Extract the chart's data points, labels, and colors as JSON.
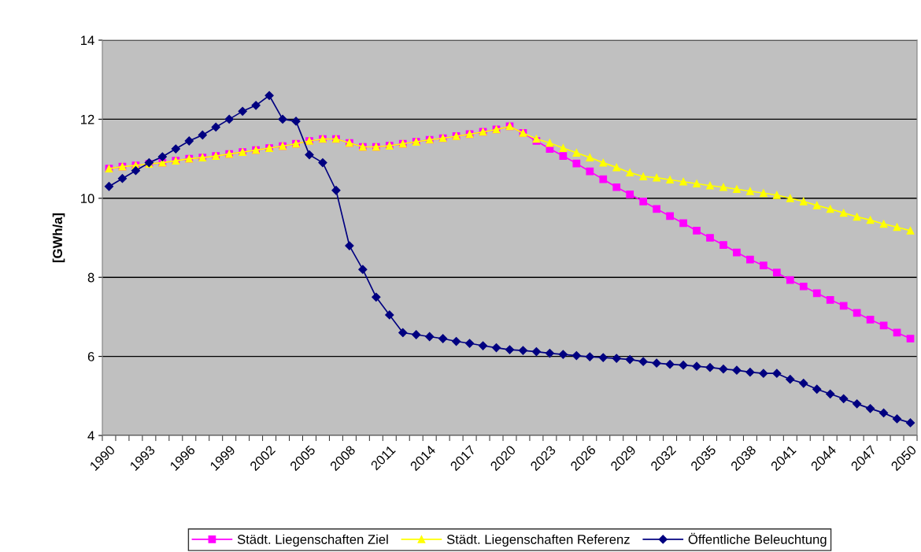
{
  "chart_data": {
    "type": "line",
    "ylabel": "[GWh/a]",
    "categories": [
      "1990",
      null,
      null,
      "1993",
      null,
      null,
      "1996",
      null,
      null,
      "1999",
      null,
      null,
      "2002",
      null,
      null,
      "2005",
      null,
      null,
      "2008",
      null,
      null,
      "2011",
      null,
      null,
      "2014",
      null,
      null,
      "2017",
      null,
      null,
      "2020",
      null,
      null,
      "2023",
      null,
      null,
      "2026",
      null,
      null,
      "2029",
      null,
      null,
      "2032",
      null,
      null,
      "2035",
      null,
      null,
      "2038",
      null,
      null,
      "2041",
      null,
      null,
      "2044",
      null,
      null,
      "2047",
      null,
      null,
      "2050"
    ],
    "ylim": [
      4,
      14
    ],
    "yticks": [
      4,
      6,
      8,
      10,
      12,
      14
    ],
    "grid": "y",
    "legend": "bottom",
    "series": [
      {
        "name": "Städt. Liegenschaften Ziel",
        "color": "#ff00ff",
        "marker": "square",
        "values": [
          10.75,
          10.8,
          10.83,
          10.87,
          10.9,
          10.95,
          11.0,
          11.03,
          11.07,
          11.12,
          11.17,
          11.22,
          11.27,
          11.32,
          11.38,
          11.45,
          11.5,
          11.5,
          11.4,
          11.3,
          11.3,
          11.33,
          11.38,
          11.43,
          11.48,
          11.52,
          11.57,
          11.62,
          11.68,
          11.74,
          11.82,
          11.65,
          11.45,
          11.25,
          11.07,
          10.88,
          10.68,
          10.48,
          10.28,
          10.1,
          9.92,
          9.73,
          9.55,
          9.37,
          9.18,
          9.0,
          8.82,
          8.63,
          8.45,
          8.3,
          8.12,
          7.93,
          7.77,
          7.6,
          7.43,
          7.28,
          7.1,
          6.93,
          6.78,
          6.6,
          6.45
        ]
      },
      {
        "name": "Städt. Liegenschaften Referenz",
        "color": "#ffff00",
        "marker": "triangle",
        "values": [
          10.75,
          10.8,
          10.83,
          10.87,
          10.9,
          10.95,
          11.0,
          11.03,
          11.07,
          11.12,
          11.17,
          11.22,
          11.27,
          11.32,
          11.38,
          11.45,
          11.5,
          11.5,
          11.4,
          11.3,
          11.3,
          11.33,
          11.38,
          11.43,
          11.48,
          11.52,
          11.57,
          11.62,
          11.68,
          11.74,
          11.82,
          11.65,
          11.5,
          11.4,
          11.27,
          11.15,
          11.03,
          10.9,
          10.78,
          10.65,
          10.55,
          10.52,
          10.47,
          10.42,
          10.37,
          10.32,
          10.28,
          10.23,
          10.18,
          10.13,
          10.08,
          10.0,
          9.92,
          9.82,
          9.73,
          9.63,
          9.53,
          9.45,
          9.35,
          9.27,
          9.18
        ]
      },
      {
        "name": "Öffentliche Beleuchtung",
        "color": "#000080",
        "marker": "diamond",
        "values": [
          10.3,
          10.5,
          10.7,
          10.9,
          11.05,
          11.25,
          11.45,
          11.6,
          11.8,
          12.0,
          12.2,
          12.35,
          12.6,
          12.0,
          11.95,
          11.1,
          10.9,
          10.2,
          8.8,
          8.2,
          7.5,
          7.05,
          6.6,
          6.55,
          6.5,
          6.45,
          6.38,
          6.33,
          6.27,
          6.22,
          6.17,
          6.15,
          6.12,
          6.08,
          6.05,
          6.02,
          5.99,
          5.97,
          5.95,
          5.92,
          5.87,
          5.83,
          5.8,
          5.78,
          5.75,
          5.72,
          5.68,
          5.65,
          5.6,
          5.57,
          5.57,
          5.42,
          5.32,
          5.17,
          5.05,
          4.93,
          4.8,
          4.68,
          4.57,
          4.42,
          4.32
        ]
      }
    ]
  }
}
